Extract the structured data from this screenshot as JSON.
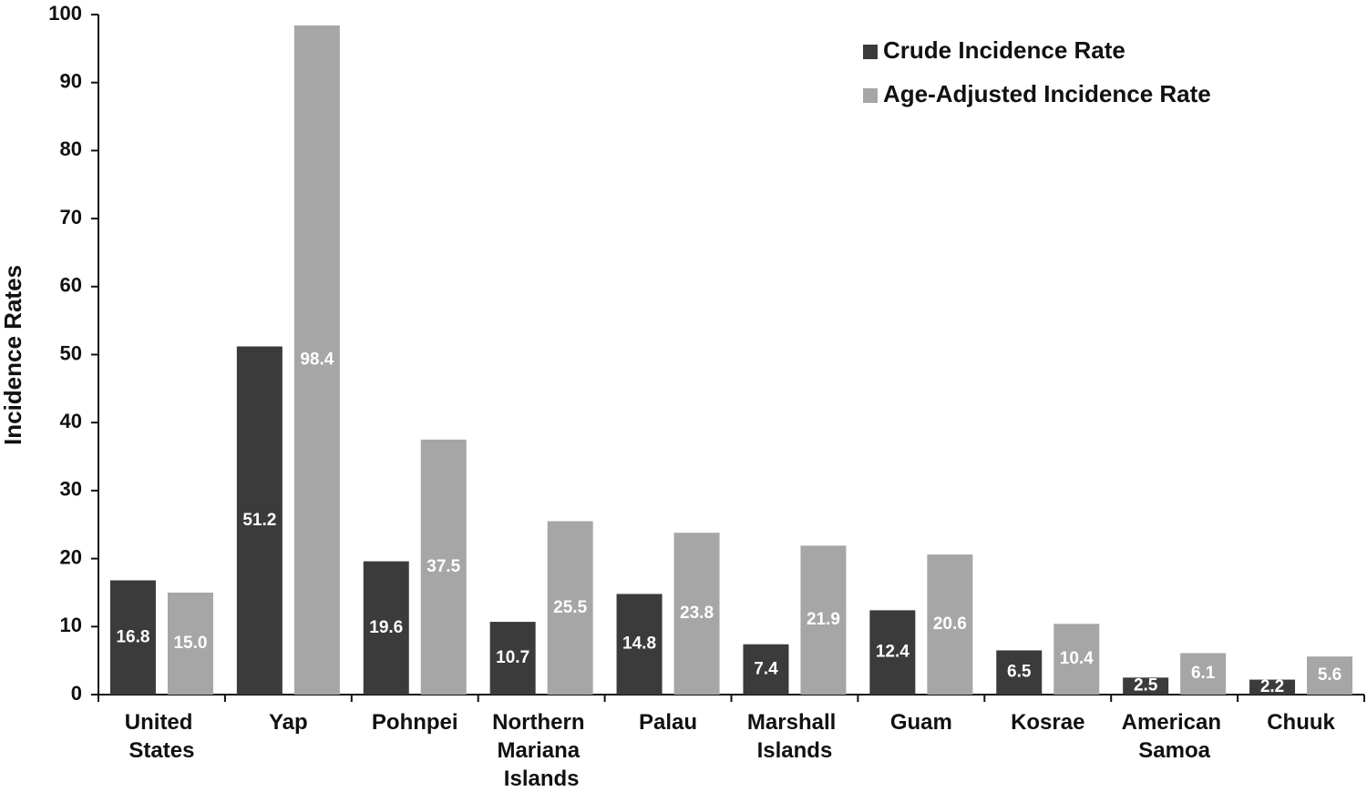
{
  "chart_data": {
    "type": "bar",
    "y_label": "Incidence Rates",
    "categories": [
      "United States",
      "Yap",
      "Pohnpei",
      "Northern Mariana Islands",
      "Palau",
      "Marshall Islands",
      "Guam",
      "Kosrae",
      "American Samoa",
      "Chuuk"
    ],
    "series": [
      {
        "name": "Crude Incidence Rate",
        "color": "#3b3b3b",
        "values": [
          16.8,
          51.2,
          19.6,
          10.7,
          14.8,
          7.4,
          12.4,
          6.5,
          2.5,
          2.2
        ],
        "value_labels": [
          "16.8",
          "51.2",
          "19.6",
          "10.7",
          "14.8",
          "7.4",
          "12.4",
          "6.5",
          "2.5",
          "2.2"
        ]
      },
      {
        "name": "Age-Adjusted Incidence Rate",
        "color": "#a6a6a6",
        "values": [
          15.0,
          98.4,
          37.5,
          25.5,
          23.8,
          21.9,
          20.6,
          10.4,
          6.1,
          5.6
        ],
        "value_labels": [
          "15.0",
          "98.4",
          "37.5",
          "25.5",
          "23.8",
          "21.9",
          "20.6",
          "10.4",
          "6.1",
          "5.6"
        ]
      }
    ],
    "ylim": [
      0,
      100
    ],
    "yticks": [
      0,
      10,
      20,
      30,
      40,
      50,
      60,
      70,
      80,
      90,
      100
    ],
    "grid": false,
    "legend": "top-right"
  }
}
